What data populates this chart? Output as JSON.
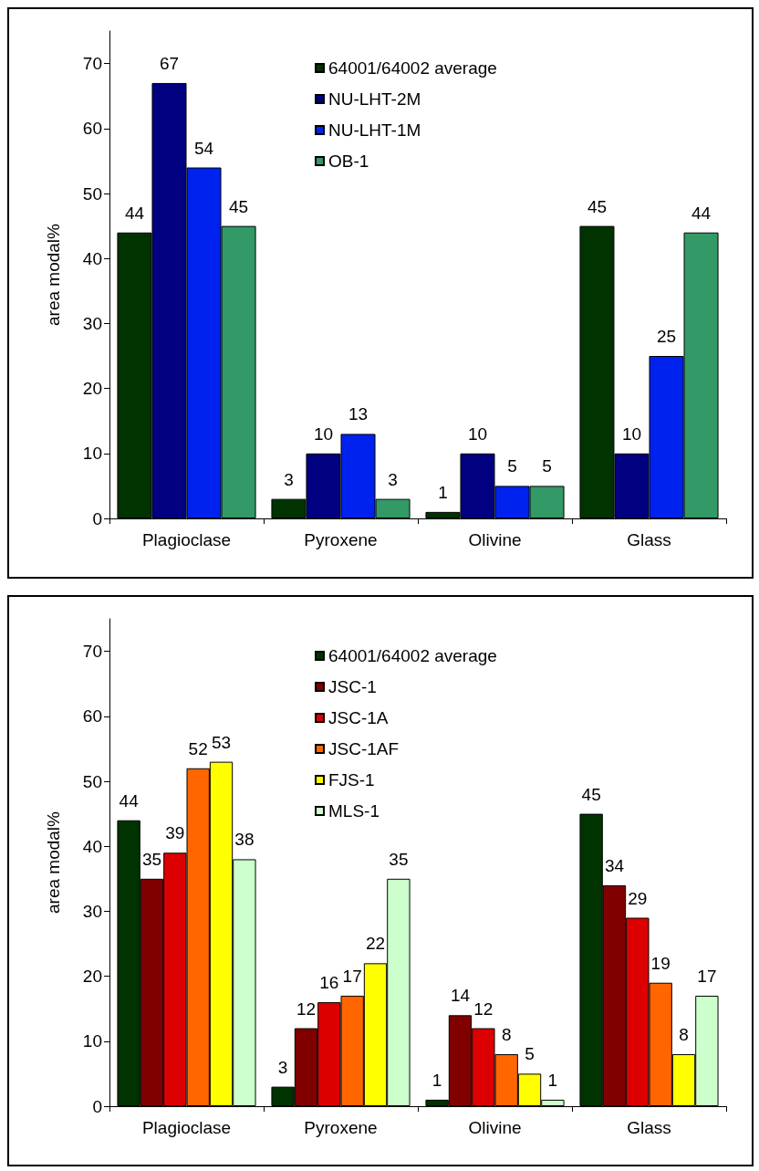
{
  "chart_data": [
    {
      "type": "bar",
      "ylabel": "area modal%",
      "categories": [
        "Plagioclase",
        "Pyroxene",
        "Olivine",
        "Glass"
      ],
      "ylim": [
        0,
        75
      ],
      "yticks": [
        0,
        10,
        20,
        30,
        40,
        50,
        60,
        70
      ],
      "grid": false,
      "legend": "top",
      "data_labels": true,
      "series": [
        {
          "name": "64001/64002 average",
          "color": "#003300",
          "values": [
            44,
            3,
            1,
            45
          ]
        },
        {
          "name": "NU-LHT-2M",
          "color": "#000080",
          "values": [
            67,
            10,
            10,
            10
          ]
        },
        {
          "name": "NU-LHT-1M",
          "color": "#0022ee",
          "values": [
            54,
            13,
            5,
            25
          ]
        },
        {
          "name": "OB-1",
          "color": "#339966",
          "values": [
            45,
            3,
            5,
            44
          ]
        }
      ]
    },
    {
      "type": "bar",
      "ylabel": "area modal%",
      "categories": [
        "Plagioclase",
        "Pyroxene",
        "Olivine",
        "Glass"
      ],
      "ylim": [
        0,
        75
      ],
      "yticks": [
        0,
        10,
        20,
        30,
        40,
        50,
        60,
        70
      ],
      "grid": false,
      "legend": "top",
      "data_labels": true,
      "series": [
        {
          "name": "64001/64002 average",
          "color": "#003300",
          "values": [
            44,
            3,
            1,
            45
          ]
        },
        {
          "name": "JSC-1",
          "color": "#800000",
          "values": [
            35,
            12,
            14,
            34
          ]
        },
        {
          "name": "JSC-1A",
          "color": "#dd0000",
          "values": [
            39,
            16,
            12,
            29
          ]
        },
        {
          "name": "JSC-1AF",
          "color": "#ff6600",
          "values": [
            52,
            17,
            8,
            19
          ]
        },
        {
          "name": "FJS-1",
          "color": "#ffff00",
          "values": [
            53,
            22,
            5,
            8
          ]
        },
        {
          "name": "MLS-1",
          "color": "#ccffcc",
          "values": [
            38,
            35,
            1,
            17
          ]
        }
      ]
    }
  ]
}
